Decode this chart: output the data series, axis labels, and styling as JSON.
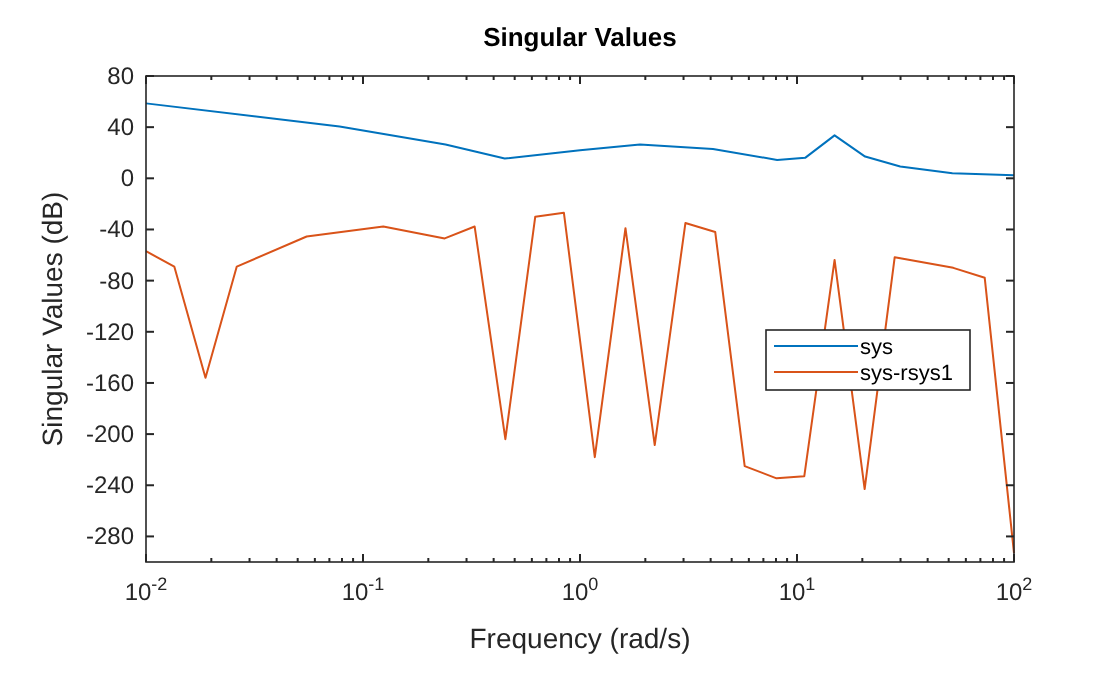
{
  "chart_data": {
    "type": "line",
    "title": "Singular Values",
    "xlabel": "Frequency (rad/s)",
    "ylabel": "Singular Values (dB)",
    "log": "x",
    "xlim": [
      0.01,
      100
    ],
    "xticks": [
      {
        "value": 0.01,
        "label": "10$^{-2}$"
      },
      {
        "value": 0.1,
        "label": "10$^{-1}$"
      },
      {
        "value": 1,
        "label": "10$^{0}$"
      },
      {
        "value": 10,
        "label": "10$^{1}$"
      },
      {
        "value": 100,
        "label": "10$^{2}$"
      }
    ],
    "ylim": [
      -300,
      80
    ],
    "yticks": [
      80,
      40,
      0,
      -40,
      -80,
      -120,
      -160,
      -200,
      -240,
      -280
    ],
    "grid": false,
    "legend": "right",
    "marker": "none",
    "line_style": "solid",
    "series": [
      {
        "name": "sys",
        "color": "#0072bd",
        "x": [
          0.01,
          0.078,
          0.24,
          0.45,
          1.0,
          1.89,
          4.1,
          8.1,
          10.9,
          14.9,
          20.6,
          29.9,
          52,
          100
        ],
        "values": [
          58.6,
          40.5,
          26.4,
          15.5,
          22,
          26.4,
          23,
          14.4,
          16,
          33.6,
          17,
          9.2,
          4,
          2.4
        ]
      },
      {
        "name": "sys-rsys1",
        "color": "#d95319",
        "x": [
          0.01,
          0.0135,
          0.0188,
          0.0262,
          0.055,
          0.124,
          0.238,
          0.327,
          0.453,
          0.622,
          0.843,
          1.17,
          1.62,
          2.21,
          3.06,
          4.2,
          5.74,
          8.05,
          10.8,
          14.9,
          20.5,
          28.2,
          52.5,
          73.3,
          100
        ],
        "values": [
          -57,
          -69,
          -156,
          -69,
          -45.5,
          -37.7,
          -47,
          -37.7,
          -204,
          -30,
          -27,
          -218,
          -39,
          -208.6,
          -35,
          -42,
          -225,
          -234.6,
          -233,
          -63.8,
          -243,
          -61.7,
          -70,
          -77.8,
          -293
        ]
      }
    ]
  }
}
